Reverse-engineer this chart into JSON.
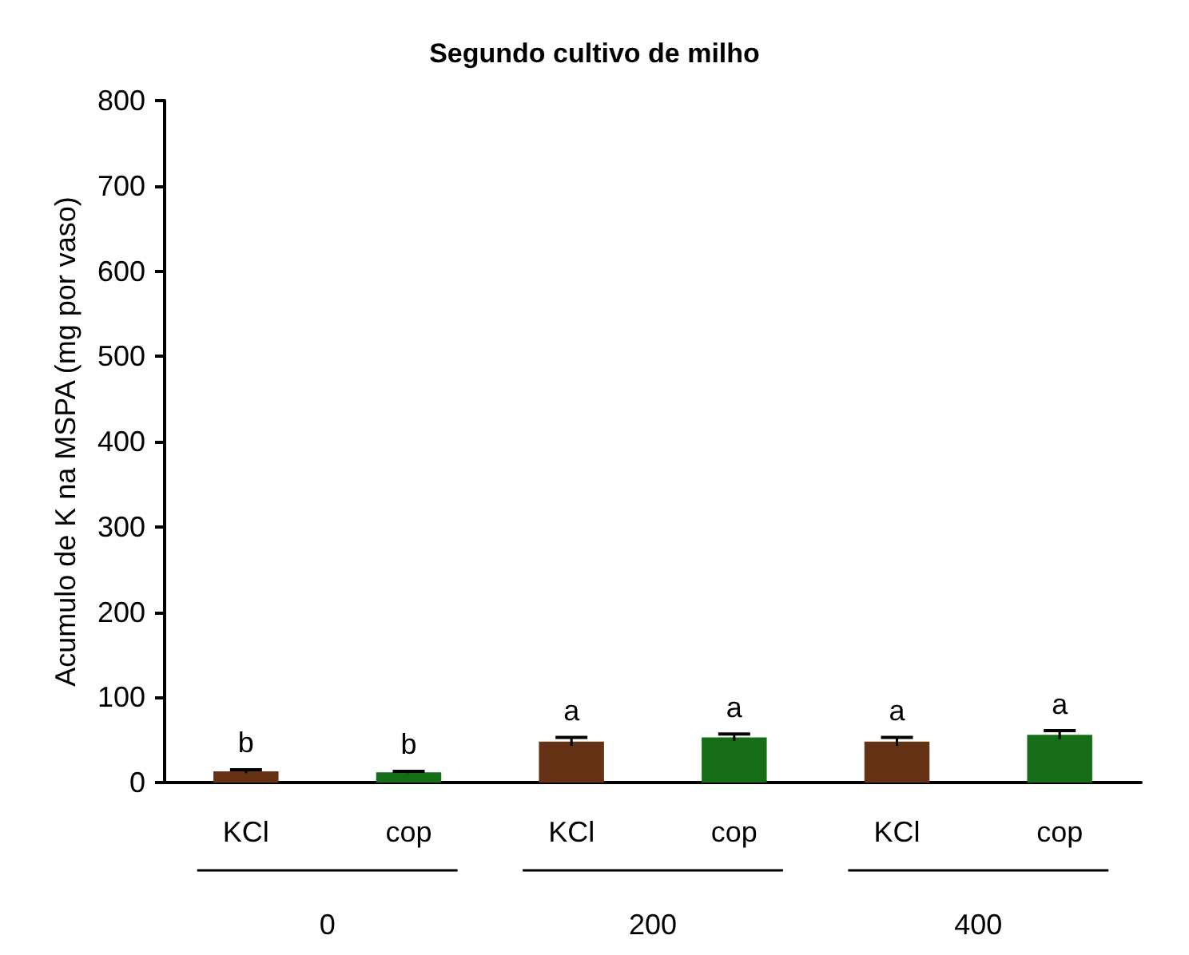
{
  "chart_data": {
    "type": "bar",
    "title": "Segundo cultivo de milho",
    "ylabel": "Acumulo de K na MSPA (mg por vaso)",
    "categories": [
      "KCl",
      "cop",
      "KCl",
      "cop",
      "KCl",
      "cop"
    ],
    "values": [
      13,
      12,
      48,
      53,
      48,
      56
    ],
    "colors": [
      "#653215",
      "#176d17",
      "#653215",
      "#176d17",
      "#653215",
      "#176d17"
    ],
    "errors": [
      2,
      1,
      5,
      4,
      5,
      5
    ],
    "value_labels": [
      "b",
      "b",
      "a",
      "a",
      "a",
      "a"
    ],
    "annotations": [
      "0",
      "200",
      "400"
    ],
    "ylim": [
      0,
      800
    ],
    "yticks": [
      0,
      100,
      200,
      300,
      400,
      500,
      600,
      700,
      800
    ],
    "grid": false
  }
}
